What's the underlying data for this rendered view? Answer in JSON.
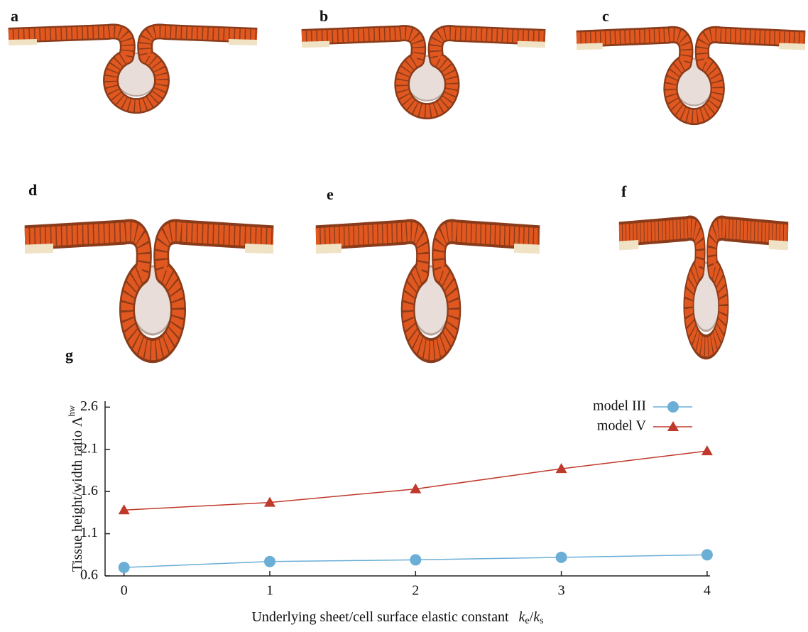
{
  "panels": [
    "a",
    "b",
    "c",
    "d",
    "e",
    "f"
  ],
  "chart_data": {
    "type": "line",
    "label": "g",
    "ylabel": "Tissue height/width ratio Λ",
    "ylabel_sup": "hw",
    "xlabel": "Underlying sheet/cell surface elastic constant",
    "xlabel_math": [
      "k",
      "e",
      "/",
      "k",
      "s"
    ],
    "x": [
      0,
      1,
      2,
      3,
      4
    ],
    "series": [
      {
        "name": "model III",
        "color": "#6baed6",
        "marker": "circle",
        "values": [
          0.7,
          0.77,
          0.79,
          0.82,
          0.85
        ]
      },
      {
        "name": "model V",
        "color": "#c0392b",
        "marker": "triangle",
        "values": [
          1.38,
          1.47,
          1.63,
          1.87,
          2.08
        ]
      }
    ],
    "xlim": [
      -0.13,
      4.02
    ],
    "ylim": [
      0.6,
      2.67
    ],
    "xticks": [
      0,
      1,
      2,
      3,
      4
    ],
    "yticks": [
      0.6,
      1.1,
      1.6,
      2.1,
      2.6
    ],
    "legend": "top-right"
  }
}
